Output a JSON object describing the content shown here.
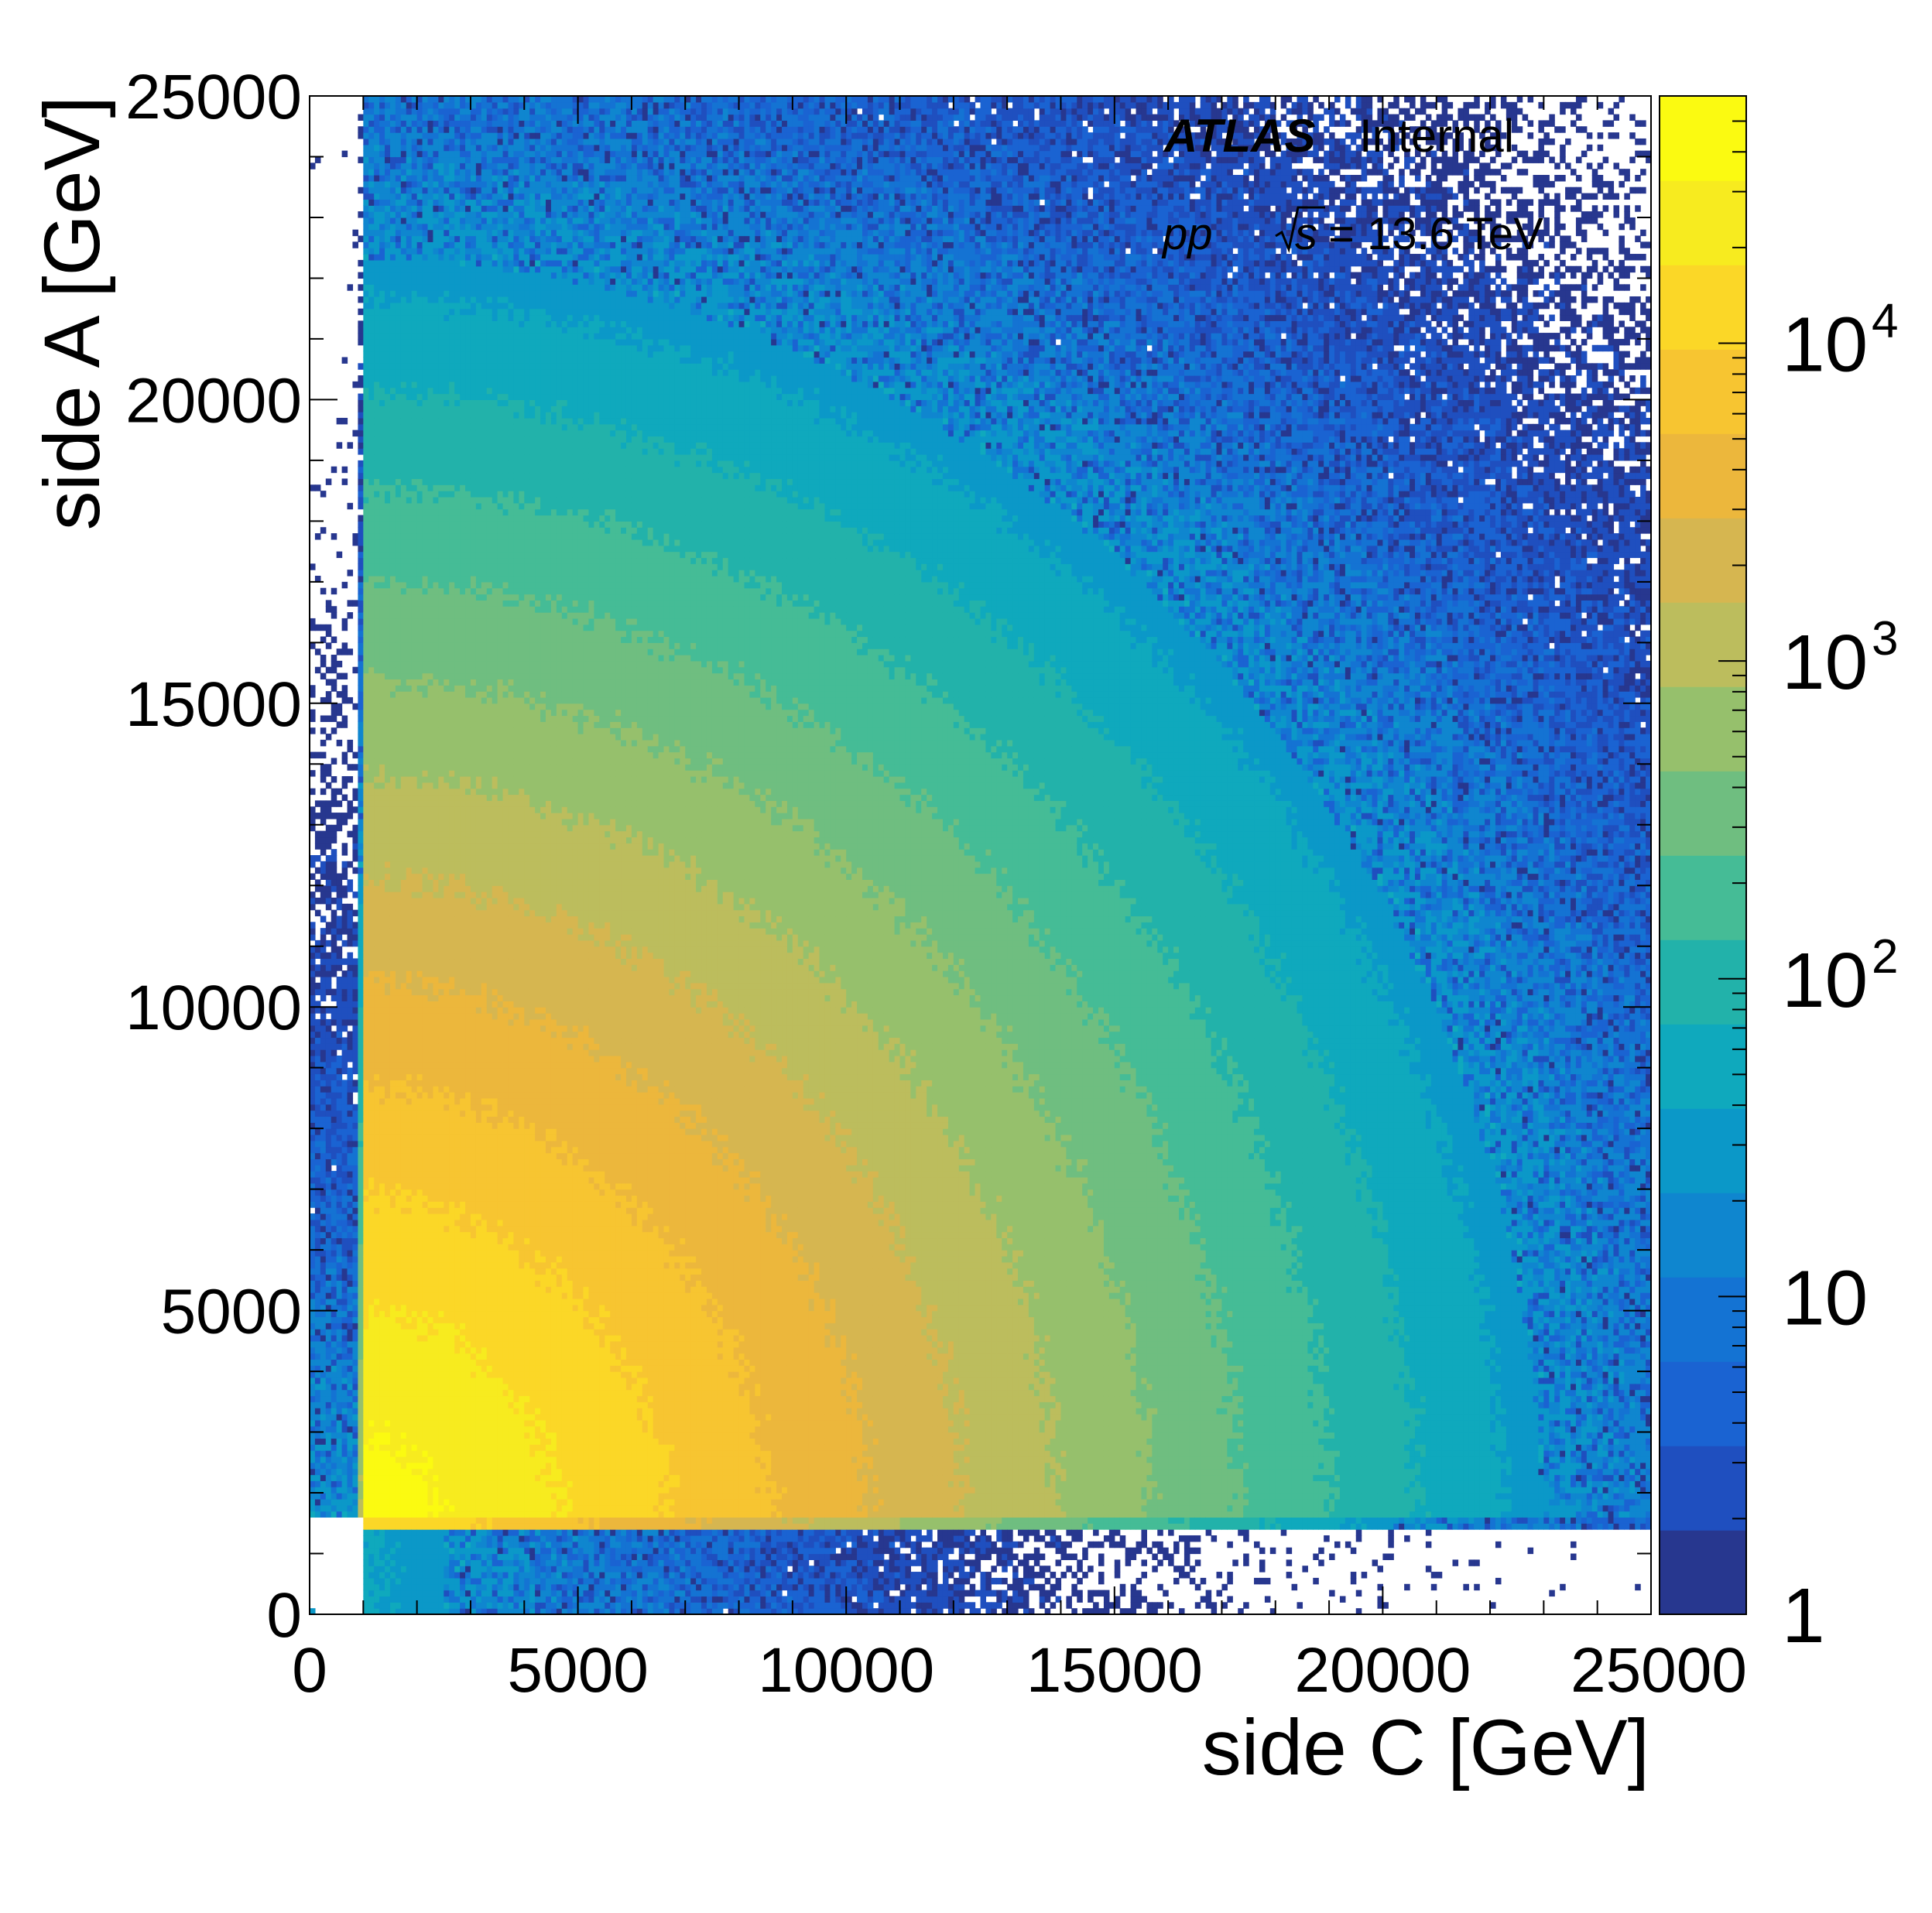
{
  "chart_data": {
    "type": "heatmap",
    "title": "",
    "xlabel": "side C [GeV]",
    "ylabel": "side A [GeV]",
    "xlim": [
      0,
      25000
    ],
    "ylim": [
      0,
      25000
    ],
    "x_ticks": [
      "0",
      "5000",
      "10000",
      "15000",
      "20000",
      "25000"
    ],
    "x_tick_values": [
      0,
      5000,
      10000,
      15000,
      20000,
      25000
    ],
    "y_ticks": [
      "0",
      "5000",
      "10000",
      "15000",
      "20000",
      "25000"
    ],
    "y_tick_values": [
      0,
      5000,
      10000,
      15000,
      20000,
      25000
    ],
    "z_scale": "log",
    "z_range": [
      1,
      60000
    ],
    "z_ticks": [
      {
        "value": 1,
        "base": "1",
        "exp": ""
      },
      {
        "value": 10,
        "base": "10",
        "exp": ""
      },
      {
        "value": 100,
        "base": "10",
        "exp": "2"
      },
      {
        "value": 1000,
        "base": "10",
        "exp": "3"
      },
      {
        "value": 10000,
        "base": "10",
        "exp": "4"
      }
    ],
    "grid": false,
    "annotations": {
      "experiment": "ATLAS",
      "status": "Internal",
      "process": "pp",
      "energy_sqrt": "s",
      "energy_value": "= 13.6 TeV"
    },
    "distribution": {
      "description_values": {
        "threshold_c_gev": 1000,
        "threshold_a_gev": 1600,
        "peak_counts": 50000,
        "peak_position_gev": [
          1500,
          1800
        ]
      }
    },
    "palette": [
      "#27378f",
      "#1f4fbf",
      "#1a63d2",
      "#1473d3",
      "#0f86cf",
      "#0b98c8",
      "#0fa9bd",
      "#22b2aa",
      "#45bc96",
      "#6fbe80",
      "#96c06c",
      "#bcbd5d",
      "#d6b650",
      "#ecb73c",
      "#f7c531",
      "#fbd727",
      "#f7eb1f",
      "#fbfa11"
    ]
  }
}
